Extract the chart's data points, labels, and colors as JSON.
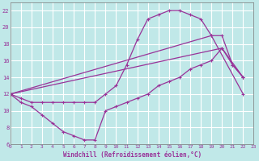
{
  "title": "",
  "xlabel": "Windchill (Refroidissement éolien,°C)",
  "bg_color": "#c0e8e8",
  "line_color": "#993399",
  "grid_color": "#ffffff",
  "xmin": 0,
  "xmax": 23,
  "ymin": 6,
  "ymax": 23,
  "yticks": [
    6,
    8,
    10,
    12,
    14,
    16,
    18,
    20,
    22
  ],
  "xticks": [
    0,
    1,
    2,
    3,
    4,
    5,
    6,
    7,
    8,
    9,
    10,
    11,
    12,
    13,
    14,
    15,
    16,
    17,
    18,
    19,
    20,
    21,
    22,
    23
  ],
  "line1_x": [
    0,
    1,
    2,
    3,
    4,
    5,
    6,
    7,
    8,
    9,
    10,
    11,
    12,
    13,
    14,
    15,
    16,
    17,
    18,
    19,
    20,
    21,
    22
  ],
  "line1_y": [
    12,
    11.5,
    11,
    11,
    11,
    11,
    11,
    11,
    11,
    12,
    13,
    15.5,
    18.5,
    21,
    21.5,
    22,
    22,
    21.5,
    21,
    19,
    19,
    15.5,
    14
  ],
  "line2_x": [
    0,
    19,
    22
  ],
  "line2_y": [
    12,
    19,
    12
  ],
  "line3_x": [
    0,
    20,
    22
  ],
  "line3_y": [
    12,
    17.5,
    14
  ],
  "line4_x": [
    0,
    1,
    2,
    3,
    4,
    5,
    6,
    7,
    8,
    9,
    10,
    11,
    12,
    13,
    14,
    15,
    16,
    17,
    18,
    19,
    20,
    21,
    22
  ],
  "line4_y": [
    12,
    11,
    10.5,
    9.5,
    8.5,
    7.5,
    7,
    6.5,
    6.5,
    10,
    10.5,
    11,
    11.5,
    12,
    13,
    13.5,
    14,
    15,
    15.5,
    16,
    17.5,
    15.5,
    14
  ]
}
